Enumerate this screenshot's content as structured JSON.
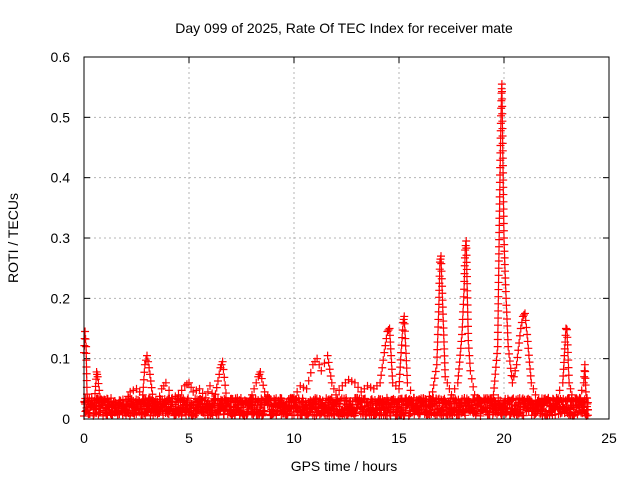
{
  "chart_data": {
    "type": "scatter",
    "title": "Day 099 of 2025, Rate Of TEC Index for receiver mate",
    "xlabel": "GPS time / hours",
    "ylabel": "ROTI / TECUs",
    "xlim": [
      0,
      25
    ],
    "ylim": [
      0,
      0.6
    ],
    "x_ticks": [
      0,
      5,
      10,
      15,
      20,
      25
    ],
    "x_tick_labels": [
      "0",
      "5",
      "10",
      "15",
      "20",
      "25"
    ],
    "y_ticks": [
      0,
      0.1,
      0.2,
      0.3,
      0.4,
      0.5,
      0.6
    ],
    "y_tick_labels": [
      "0",
      "0.1",
      "0.2",
      "0.3",
      "0.4",
      "0.5",
      "0.6"
    ],
    "grid": true,
    "legend": "none",
    "marker": "plus",
    "marker_color": "#ff0000",
    "series": [
      {
        "points": [
          [
            0.0,
            0.11
          ],
          [
            0.05,
            0.145
          ],
          [
            0.1,
            0.12
          ],
          [
            0.15,
            0.03
          ],
          [
            0.3,
            0.02
          ],
          [
            0.5,
            0.03
          ],
          [
            0.6,
            0.078
          ],
          [
            0.65,
            0.07
          ],
          [
            0.8,
            0.025
          ],
          [
            1.0,
            0.03
          ],
          [
            1.2,
            0.015
          ],
          [
            1.5,
            0.025
          ],
          [
            1.8,
            0.02
          ],
          [
            2.0,
            0.03
          ],
          [
            2.2,
            0.045
          ],
          [
            2.5,
            0.05
          ],
          [
            2.8,
            0.04
          ],
          [
            2.9,
            0.09
          ],
          [
            3.0,
            0.105
          ],
          [
            3.1,
            0.085
          ],
          [
            3.3,
            0.03
          ],
          [
            3.5,
            0.025
          ],
          [
            3.7,
            0.05
          ],
          [
            3.9,
            0.06
          ],
          [
            4.2,
            0.035
          ],
          [
            4.5,
            0.04
          ],
          [
            4.8,
            0.055
          ],
          [
            5.0,
            0.06
          ],
          [
            5.2,
            0.045
          ],
          [
            5.5,
            0.05
          ],
          [
            5.8,
            0.035
          ],
          [
            6.0,
            0.055
          ],
          [
            6.2,
            0.03
          ],
          [
            6.5,
            0.085
          ],
          [
            6.6,
            0.095
          ],
          [
            6.8,
            0.03
          ],
          [
            7.0,
            0.02
          ],
          [
            7.3,
            0.035
          ],
          [
            7.6,
            0.025
          ],
          [
            7.9,
            0.03
          ],
          [
            8.1,
            0.05
          ],
          [
            8.3,
            0.07
          ],
          [
            8.4,
            0.078
          ],
          [
            8.6,
            0.045
          ],
          [
            8.9,
            0.03
          ],
          [
            9.2,
            0.02
          ],
          [
            9.5,
            0.025
          ],
          [
            9.8,
            0.02
          ],
          [
            10.0,
            0.035
          ],
          [
            10.3,
            0.055
          ],
          [
            10.6,
            0.05
          ],
          [
            10.9,
            0.09
          ],
          [
            11.1,
            0.1
          ],
          [
            11.3,
            0.08
          ],
          [
            11.6,
            0.105
          ],
          [
            11.8,
            0.06
          ],
          [
            12.0,
            0.04
          ],
          [
            12.3,
            0.055
          ],
          [
            12.6,
            0.065
          ],
          [
            12.9,
            0.06
          ],
          [
            13.2,
            0.045
          ],
          [
            13.5,
            0.055
          ],
          [
            13.8,
            0.05
          ],
          [
            14.1,
            0.06
          ],
          [
            14.3,
            0.11
          ],
          [
            14.45,
            0.145
          ],
          [
            14.55,
            0.15
          ],
          [
            14.7,
            0.06
          ],
          [
            15.0,
            0.05
          ],
          [
            15.1,
            0.11
          ],
          [
            15.2,
            0.16
          ],
          [
            15.25,
            0.17
          ],
          [
            15.4,
            0.06
          ],
          [
            15.7,
            0.035
          ],
          [
            16.0,
            0.025
          ],
          [
            16.3,
            0.03
          ],
          [
            16.6,
            0.045
          ],
          [
            16.8,
            0.09
          ],
          [
            16.9,
            0.19
          ],
          [
            16.95,
            0.26
          ],
          [
            17.0,
            0.27
          ],
          [
            17.05,
            0.22
          ],
          [
            17.2,
            0.07
          ],
          [
            17.5,
            0.04
          ],
          [
            17.8,
            0.06
          ],
          [
            18.0,
            0.14
          ],
          [
            18.1,
            0.215
          ],
          [
            18.15,
            0.28
          ],
          [
            18.2,
            0.295
          ],
          [
            18.3,
            0.13
          ],
          [
            18.4,
            0.08
          ],
          [
            18.6,
            0.04
          ],
          [
            18.9,
            0.03
          ],
          [
            19.2,
            0.025
          ],
          [
            19.5,
            0.04
          ],
          [
            19.7,
            0.12
          ],
          [
            19.75,
            0.25
          ],
          [
            19.8,
            0.38
          ],
          [
            19.85,
            0.49
          ],
          [
            19.88,
            0.54
          ],
          [
            19.9,
            0.555
          ],
          [
            19.95,
            0.42
          ],
          [
            20.0,
            0.3
          ],
          [
            20.05,
            0.245
          ],
          [
            20.1,
            0.2
          ],
          [
            20.2,
            0.12
          ],
          [
            20.4,
            0.06
          ],
          [
            20.6,
            0.09
          ],
          [
            20.8,
            0.15
          ],
          [
            20.9,
            0.17
          ],
          [
            21.0,
            0.175
          ],
          [
            21.1,
            0.14
          ],
          [
            21.3,
            0.06
          ],
          [
            21.6,
            0.03
          ],
          [
            21.9,
            0.025
          ],
          [
            22.2,
            0.03
          ],
          [
            22.5,
            0.035
          ],
          [
            22.8,
            0.06
          ],
          [
            22.95,
            0.15
          ],
          [
            23.0,
            0.148
          ],
          [
            23.1,
            0.06
          ],
          [
            23.3,
            0.03
          ],
          [
            23.6,
            0.035
          ],
          [
            23.8,
            0.06
          ],
          [
            23.85,
            0.09
          ],
          [
            23.9,
            0.045
          ],
          [
            24.0,
            0.015
          ]
        ]
      }
    ],
    "baseline_band": {
      "x_range": [
        0,
        24
      ],
      "y_range": [
        0.005,
        0.035
      ]
    }
  }
}
